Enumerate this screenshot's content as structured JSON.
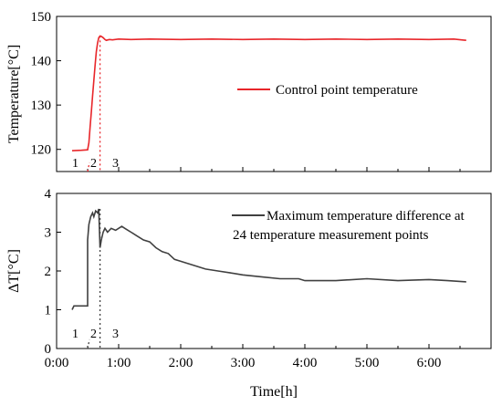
{
  "chart_data": [
    {
      "type": "line",
      "ylabel": "Temperature[°C]",
      "xlabel": "",
      "xlim": [
        0,
        7
      ],
      "ylim": [
        115,
        150
      ],
      "yticks": [
        "120",
        "130",
        "140",
        "150"
      ],
      "legend": {
        "placement": "center-right",
        "entries": [
          "Control point temperature"
        ]
      },
      "phase_labels": [
        "1",
        "2",
        "3"
      ],
      "series": [
        {
          "name": "Control point temperature",
          "color": "#e8262a",
          "x": [
            0.25,
            0.4,
            0.5,
            0.52,
            0.54,
            0.56,
            0.58,
            0.6,
            0.62,
            0.64,
            0.66,
            0.68,
            0.7,
            0.72,
            0.75,
            0.78,
            0.8,
            0.85,
            0.9,
            1.0,
            1.2,
            1.5,
            2.0,
            2.5,
            3.0,
            3.5,
            4.0,
            4.5,
            5.0,
            5.5,
            6.0,
            6.4,
            6.6
          ],
          "y": [
            119.7,
            119.8,
            119.9,
            121.5,
            125.0,
            128.5,
            132.0,
            135.5,
            139.0,
            142.0,
            144.0,
            145.2,
            145.6,
            145.5,
            145.2,
            144.8,
            144.6,
            144.8,
            144.7,
            144.9,
            144.8,
            144.9,
            144.8,
            144.9,
            144.8,
            144.9,
            144.8,
            144.9,
            144.8,
            144.9,
            144.8,
            144.9,
            144.6
          ]
        }
      ]
    },
    {
      "type": "line",
      "ylabel": "ΔT[°C]",
      "xlabel": "Time[h]",
      "xlim": [
        0,
        7
      ],
      "ylim": [
        0,
        4
      ],
      "yticks": [
        "0",
        "1",
        "2",
        "3",
        "4"
      ],
      "xticks": [
        "0:00",
        "1:00",
        "2:00",
        "3:00",
        "4:00",
        "5:00",
        "6:00"
      ],
      "legend": {
        "placement": "top-right",
        "entries": [
          "Maximum temperature difference at",
          "24 temperature measurement points"
        ]
      },
      "phase_labels": [
        "1",
        "2",
        "3"
      ],
      "series": [
        {
          "name": "Maximum temperature difference at 24 temperature measurement points",
          "color": "#404040",
          "x": [
            0.25,
            0.28,
            0.3,
            0.5,
            0.5,
            0.52,
            0.55,
            0.58,
            0.6,
            0.63,
            0.66,
            0.68,
            0.7,
            0.72,
            0.75,
            0.78,
            0.82,
            0.88,
            0.95,
            1.05,
            1.1,
            1.2,
            1.3,
            1.4,
            1.5,
            1.6,
            1.7,
            1.8,
            1.9,
            2.0,
            2.2,
            2.4,
            2.6,
            2.8,
            3.0,
            3.3,
            3.6,
            3.9,
            4.0,
            4.5,
            5.0,
            5.5,
            6.0,
            6.3,
            6.6
          ],
          "y": [
            1.0,
            1.1,
            1.1,
            1.1,
            2.8,
            3.2,
            3.4,
            3.5,
            3.4,
            3.55,
            3.5,
            3.6,
            2.6,
            2.8,
            3.0,
            3.1,
            3.0,
            3.1,
            3.05,
            3.15,
            3.1,
            3.0,
            2.9,
            2.8,
            2.75,
            2.6,
            2.5,
            2.45,
            2.3,
            2.25,
            2.15,
            2.05,
            2.0,
            1.95,
            1.9,
            1.85,
            1.8,
            1.8,
            1.75,
            1.75,
            1.8,
            1.75,
            1.78,
            1.75,
            1.72
          ]
        }
      ]
    }
  ]
}
